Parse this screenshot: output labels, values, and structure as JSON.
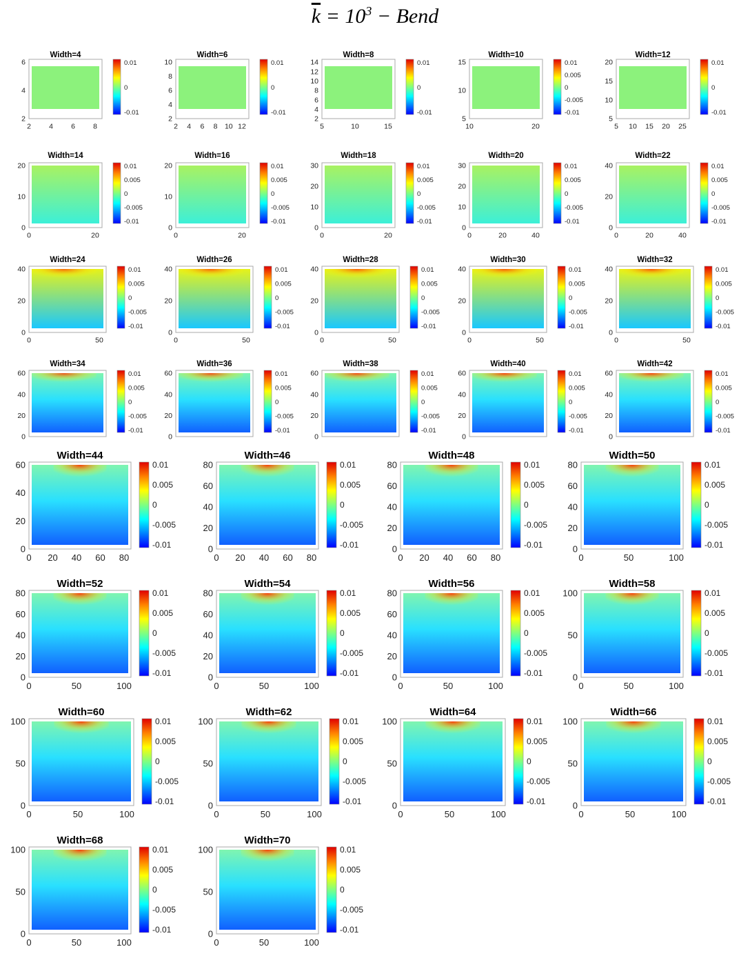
{
  "figure": {
    "title_k": "k",
    "title_eq": " = 10",
    "title_exp": "3",
    "title_rest": " − Bend"
  },
  "colormap": [
    "#0000ff",
    "#0080ff",
    "#00ffff",
    "#80ff80",
    "#ffff00",
    "#ff8000",
    "#e00000"
  ],
  "chart_data": [
    {
      "type": "heatmap",
      "title": "Width=4",
      "x_ticks": [
        "2",
        "4",
        "6",
        "8"
      ],
      "y_ticks": [
        "2",
        "4",
        "6"
      ],
      "colorbar_ticks": [
        "0.01",
        "0",
        "-0.01"
      ],
      "clim": [
        -0.01,
        0.01
      ]
    },
    {
      "type": "heatmap",
      "title": "Width=6",
      "x_ticks": [
        "2",
        "4",
        "6",
        "8",
        "10",
        "12"
      ],
      "y_ticks": [
        "2",
        "4",
        "6",
        "8",
        "10"
      ],
      "colorbar_ticks": [
        "0.01",
        "0",
        "-0.01"
      ],
      "clim": [
        -0.01,
        0.01
      ]
    },
    {
      "type": "heatmap",
      "title": "Width=8",
      "x_ticks": [
        "5",
        "10",
        "15"
      ],
      "y_ticks": [
        "2",
        "4",
        "6",
        "8",
        "10",
        "12",
        "14"
      ],
      "colorbar_ticks": [
        "0.01",
        "0",
        "-0.01"
      ],
      "clim": [
        -0.01,
        0.01
      ]
    },
    {
      "type": "heatmap",
      "title": "Width=10",
      "x_ticks": [
        "10",
        "20"
      ],
      "y_ticks": [
        "5",
        "10",
        "15"
      ],
      "colorbar_ticks": [
        "0.01",
        "0.005",
        "0",
        "-0.005",
        "-0.01"
      ],
      "clim": [
        -0.01,
        0.01
      ]
    },
    {
      "type": "heatmap",
      "title": "Width=12",
      "x_ticks": [
        "5",
        "10",
        "15",
        "20",
        "25"
      ],
      "y_ticks": [
        "5",
        "10",
        "15",
        "20"
      ],
      "colorbar_ticks": [
        "0.01",
        "0",
        "-0.01"
      ],
      "clim": [
        -0.01,
        0.01
      ]
    },
    {
      "type": "heatmap",
      "title": "Width=14",
      "x_ticks": [
        "0",
        "20"
      ],
      "y_ticks": [
        "0",
        "10",
        "20"
      ],
      "colorbar_ticks": [
        "0.01",
        "0.005",
        "0",
        "-0.005",
        "-0.01"
      ],
      "clim": [
        -0.01,
        0.01
      ]
    },
    {
      "type": "heatmap",
      "title": "Width=16",
      "x_ticks": [
        "0",
        "20"
      ],
      "y_ticks": [
        "0",
        "10",
        "20"
      ],
      "colorbar_ticks": [
        "0.01",
        "0.005",
        "0",
        "-0.005",
        "-0.01"
      ],
      "clim": [
        -0.01,
        0.01
      ]
    },
    {
      "type": "heatmap",
      "title": "Width=18",
      "x_ticks": [
        "0",
        "20"
      ],
      "y_ticks": [
        "0",
        "10",
        "20",
        "30"
      ],
      "colorbar_ticks": [
        "0.01",
        "0.005",
        "0",
        "-0.005",
        "-0.01"
      ],
      "clim": [
        -0.01,
        0.01
      ]
    },
    {
      "type": "heatmap",
      "title": "Width=20",
      "x_ticks": [
        "0",
        "20",
        "40"
      ],
      "y_ticks": [
        "0",
        "10",
        "20",
        "30"
      ],
      "colorbar_ticks": [
        "0.01",
        "0.005",
        "0",
        "-0.005",
        "-0.01"
      ],
      "clim": [
        -0.01,
        0.01
      ]
    },
    {
      "type": "heatmap",
      "title": "Width=22",
      "x_ticks": [
        "0",
        "20",
        "40"
      ],
      "y_ticks": [
        "0",
        "20",
        "40"
      ],
      "colorbar_ticks": [
        "0.01",
        "0.005",
        "0",
        "-0.005",
        "-0.01"
      ],
      "clim": [
        -0.01,
        0.01
      ]
    },
    {
      "type": "heatmap",
      "title": "Width=24",
      "x_ticks": [
        "0",
        "50"
      ],
      "y_ticks": [
        "0",
        "20",
        "40"
      ],
      "colorbar_ticks": [
        "0.01",
        "0.005",
        "0",
        "-0.005",
        "-0.01"
      ],
      "clim": [
        -0.01,
        0.01
      ]
    },
    {
      "type": "heatmap",
      "title": "Width=26",
      "x_ticks": [
        "0",
        "50"
      ],
      "y_ticks": [
        "0",
        "20",
        "40"
      ],
      "colorbar_ticks": [
        "0.01",
        "0.005",
        "0",
        "-0.005",
        "-0.01"
      ],
      "clim": [
        -0.01,
        0.01
      ]
    },
    {
      "type": "heatmap",
      "title": "Width=28",
      "x_ticks": [
        "0",
        "50"
      ],
      "y_ticks": [
        "0",
        "20",
        "40"
      ],
      "colorbar_ticks": [
        "0.01",
        "0.005",
        "0",
        "-0.005",
        "-0.01"
      ],
      "clim": [
        -0.01,
        0.01
      ]
    },
    {
      "type": "heatmap",
      "title": "Width=30",
      "x_ticks": [
        "0",
        "50"
      ],
      "y_ticks": [
        "0",
        "20",
        "40"
      ],
      "colorbar_ticks": [
        "0.01",
        "0.005",
        "0",
        "-0.005",
        "-0.01"
      ],
      "clim": [
        -0.01,
        0.01
      ]
    },
    {
      "type": "heatmap",
      "title": "Width=32",
      "x_ticks": [
        "0",
        "50"
      ],
      "y_ticks": [
        "0",
        "20",
        "40"
      ],
      "colorbar_ticks": [
        "0.01",
        "0.005",
        "0",
        "-0.005",
        "-0.01"
      ],
      "clim": [
        -0.01,
        0.01
      ]
    },
    {
      "type": "heatmap",
      "title": "Width=34",
      "x_ticks": [],
      "y_ticks": [
        "0",
        "20",
        "40",
        "60"
      ],
      "colorbar_ticks": [
        "0.01",
        "0.005",
        "0",
        "-0.005",
        "-0.01"
      ],
      "clim": [
        -0.01,
        0.01
      ]
    },
    {
      "type": "heatmap",
      "title": "Width=36",
      "x_ticks": [],
      "y_ticks": [
        "0",
        "20",
        "40",
        "60"
      ],
      "colorbar_ticks": [
        "0.01",
        "0.005",
        "0",
        "-0.005",
        "-0.01"
      ],
      "clim": [
        -0.01,
        0.01
      ]
    },
    {
      "type": "heatmap",
      "title": "Width=38",
      "x_ticks": [],
      "y_ticks": [
        "0",
        "20",
        "40",
        "60"
      ],
      "colorbar_ticks": [
        "0.01",
        "0.005",
        "0",
        "-0.005",
        "-0.01"
      ],
      "clim": [
        -0.01,
        0.01
      ]
    },
    {
      "type": "heatmap",
      "title": "Width=40",
      "x_ticks": [],
      "y_ticks": [
        "0",
        "20",
        "40",
        "60"
      ],
      "colorbar_ticks": [
        "0.01",
        "0.005",
        "0",
        "-0.005",
        "-0.01"
      ],
      "clim": [
        -0.01,
        0.01
      ]
    },
    {
      "type": "heatmap",
      "title": "Width=42",
      "x_ticks": [],
      "y_ticks": [
        "0",
        "20",
        "40",
        "60"
      ],
      "colorbar_ticks": [
        "0.01",
        "0.005",
        "0",
        "-0.005",
        "-0.01"
      ],
      "clim": [
        -0.01,
        0.01
      ]
    },
    {
      "type": "heatmap",
      "title": "Width=44",
      "x_ticks": [
        "0",
        "20",
        "40",
        "60",
        "80"
      ],
      "y_ticks": [
        "0",
        "20",
        "40",
        "60"
      ],
      "colorbar_ticks": [
        "0.01",
        "0.005",
        "0",
        "-0.005",
        "-0.01"
      ],
      "clim": [
        -0.01,
        0.01
      ]
    },
    {
      "type": "heatmap",
      "title": "Width=46",
      "x_ticks": [
        "0",
        "20",
        "40",
        "60",
        "80"
      ],
      "y_ticks": [
        "0",
        "20",
        "40",
        "60",
        "80"
      ],
      "colorbar_ticks": [
        "0.01",
        "0.005",
        "0",
        "-0.005",
        "-0.01"
      ],
      "clim": [
        -0.01,
        0.01
      ]
    },
    {
      "type": "heatmap",
      "title": "Width=48",
      "x_ticks": [
        "0",
        "20",
        "40",
        "60",
        "80"
      ],
      "y_ticks": [
        "0",
        "20",
        "40",
        "60",
        "80"
      ],
      "colorbar_ticks": [
        "0.01",
        "0.005",
        "0",
        "-0.005",
        "-0.01"
      ],
      "clim": [
        -0.01,
        0.01
      ]
    },
    {
      "type": "heatmap",
      "title": "Width=50",
      "x_ticks": [
        "0",
        "50",
        "100"
      ],
      "y_ticks": [
        "0",
        "20",
        "40",
        "60",
        "80"
      ],
      "colorbar_ticks": [
        "0.01",
        "0.005",
        "0",
        "-0.005",
        "-0.01"
      ],
      "clim": [
        -0.01,
        0.01
      ]
    },
    {
      "type": "heatmap",
      "title": "Width=52",
      "x_ticks": [
        "0",
        "50",
        "100"
      ],
      "y_ticks": [
        "0",
        "20",
        "40",
        "60",
        "80"
      ],
      "colorbar_ticks": [
        "0.01",
        "0.005",
        "0",
        "-0.005",
        "-0.01"
      ],
      "clim": [
        -0.01,
        0.01
      ]
    },
    {
      "type": "heatmap",
      "title": "Width=54",
      "x_ticks": [
        "0",
        "50",
        "100"
      ],
      "y_ticks": [
        "0",
        "20",
        "40",
        "60",
        "80"
      ],
      "colorbar_ticks": [
        "0.01",
        "0.005",
        "0",
        "-0.005",
        "-0.01"
      ],
      "clim": [
        -0.01,
        0.01
      ]
    },
    {
      "type": "heatmap",
      "title": "Width=56",
      "x_ticks": [
        "0",
        "50",
        "100"
      ],
      "y_ticks": [
        "0",
        "20",
        "40",
        "60",
        "80"
      ],
      "colorbar_ticks": [
        "0.01",
        "0.005",
        "0",
        "-0.005",
        "-0.01"
      ],
      "clim": [
        -0.01,
        0.01
      ]
    },
    {
      "type": "heatmap",
      "title": "Width=58",
      "x_ticks": [
        "0",
        "50",
        "100"
      ],
      "y_ticks": [
        "0",
        "50",
        "100"
      ],
      "colorbar_ticks": [
        "0.01",
        "0.005",
        "0",
        "-0.005",
        "-0.01"
      ],
      "clim": [
        -0.01,
        0.01
      ]
    },
    {
      "type": "heatmap",
      "title": "Width=60",
      "x_ticks": [
        "0",
        "50",
        "100"
      ],
      "y_ticks": [
        "0",
        "50",
        "100"
      ],
      "colorbar_ticks": [
        "0.01",
        "0.005",
        "0",
        "-0.005",
        "-0.01"
      ],
      "clim": [
        -0.01,
        0.01
      ]
    },
    {
      "type": "heatmap",
      "title": "Width=62",
      "x_ticks": [
        "0",
        "50",
        "100"
      ],
      "y_ticks": [
        "0",
        "50",
        "100"
      ],
      "colorbar_ticks": [
        "0.01",
        "0.005",
        "0",
        "-0.005",
        "-0.01"
      ],
      "clim": [
        -0.01,
        0.01
      ]
    },
    {
      "type": "heatmap",
      "title": "Width=64",
      "x_ticks": [
        "0",
        "50",
        "100"
      ],
      "y_ticks": [
        "0",
        "50",
        "100"
      ],
      "colorbar_ticks": [
        "0.01",
        "0.005",
        "0",
        "-0.005",
        "-0.01"
      ],
      "clim": [
        -0.01,
        0.01
      ]
    },
    {
      "type": "heatmap",
      "title": "Width=66",
      "x_ticks": [
        "0",
        "50",
        "100"
      ],
      "y_ticks": [
        "0",
        "50",
        "100"
      ],
      "colorbar_ticks": [
        "0.01",
        "0.005",
        "0",
        "-0.005",
        "-0.01"
      ],
      "clim": [
        -0.01,
        0.01
      ]
    },
    {
      "type": "heatmap",
      "title": "Width=68",
      "x_ticks": [
        "0",
        "50",
        "100"
      ],
      "y_ticks": [
        "0",
        "50",
        "100"
      ],
      "colorbar_ticks": [
        "0.01",
        "0.005",
        "0",
        "-0.005",
        "-0.01"
      ],
      "clim": [
        -0.01,
        0.01
      ]
    },
    {
      "type": "heatmap",
      "title": "Width=70",
      "x_ticks": [
        "0",
        "50",
        "100"
      ],
      "y_ticks": [
        "0",
        "50",
        "100"
      ],
      "colorbar_ticks": [
        "0.01",
        "0.005",
        "0",
        "-0.005",
        "-0.01"
      ],
      "clim": [
        -0.01,
        0.01
      ]
    }
  ]
}
